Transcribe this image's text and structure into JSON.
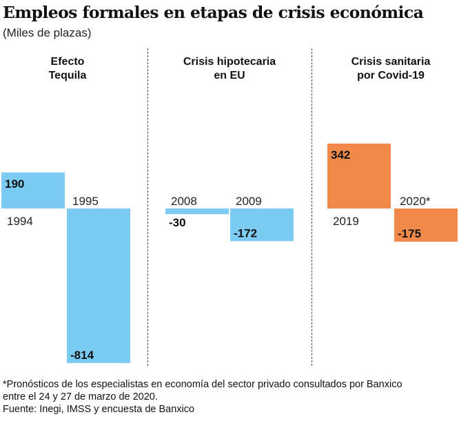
{
  "title": "Empleos formales en etapas de crisis económica",
  "subtitle": "(Miles de plazas)",
  "chart_data": [
    {
      "type": "bar",
      "title": "Efecto Tequila",
      "categories": [
        "1994",
        "1995"
      ],
      "values": [
        190,
        -814
      ],
      "color": "#7ccbf2"
    },
    {
      "type": "bar",
      "title": "Crisis hipotecaria en EU",
      "categories": [
        "2008",
        "2009"
      ],
      "values": [
        -30,
        -172
      ],
      "color": "#7ccbf2"
    },
    {
      "type": "bar",
      "title": "Crisis sanitaria por Covid-19",
      "categories": [
        "2019",
        "2020*"
      ],
      "values": [
        342,
        -175
      ],
      "color": "#f0894a"
    }
  ],
  "panels": [
    {
      "title_line1": "Efecto",
      "title_line2": "Tequila"
    },
    {
      "title_line1": "Crisis hipotecaria",
      "title_line2": "en EU"
    },
    {
      "title_line1": "Crisis sanitaria",
      "title_line2": "por Covid-19"
    }
  ],
  "footnote": {
    "line1": "*Pronósticos de los especialistas en economía del sector privado consultados por Banxico",
    "line2": "entre el 24 y 27 de marzo de 2020.",
    "source": "Fuente: Inegi, IMSS y encuesta de Banxico"
  }
}
